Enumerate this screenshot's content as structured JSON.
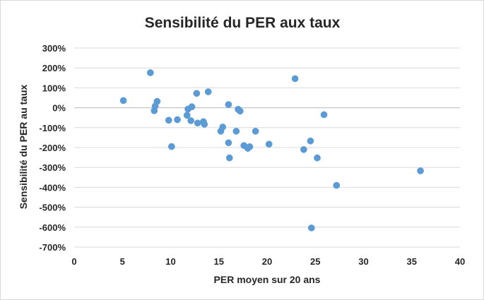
{
  "chart_data": {
    "type": "scatter",
    "title": "Sensibilité du PER aux taux",
    "xlabel": "PER moyen sur 20 ans",
    "ylabel": "Sensibilité du PER au taux",
    "xlim": [
      0,
      40
    ],
    "ylim": [
      -700,
      300
    ],
    "x_ticks": [
      0,
      5,
      10,
      15,
      20,
      25,
      30,
      35,
      40
    ],
    "x_tick_labels": [
      "0",
      "5",
      "10",
      "15",
      "20",
      "25",
      "30",
      "35",
      "40"
    ],
    "y_ticks": [
      300,
      200,
      100,
      0,
      -100,
      -200,
      -300,
      -400,
      -500,
      -600,
      -700
    ],
    "y_tick_labels": [
      "300%",
      "200%",
      "100%",
      "0%",
      "-100%",
      "-200%",
      "-300%",
      "-400%",
      "-500%",
      "-600%",
      "-700%"
    ],
    "grid": "horizontal",
    "marker_color": "#5b9bd5",
    "points": [
      {
        "x": 5.1,
        "y": 36
      },
      {
        "x": 7.9,
        "y": 176
      },
      {
        "x": 8.3,
        "y": -15
      },
      {
        "x": 8.4,
        "y": 8
      },
      {
        "x": 8.6,
        "y": 32
      },
      {
        "x": 9.8,
        "y": -63
      },
      {
        "x": 10.1,
        "y": -195
      },
      {
        "x": 10.7,
        "y": -60
      },
      {
        "x": 11.7,
        "y": -38
      },
      {
        "x": 11.8,
        "y": -7
      },
      {
        "x": 12.1,
        "y": -65
      },
      {
        "x": 12.2,
        "y": 5
      },
      {
        "x": 12.7,
        "y": 72
      },
      {
        "x": 12.8,
        "y": -77
      },
      {
        "x": 13.4,
        "y": -70
      },
      {
        "x": 13.5,
        "y": -83
      },
      {
        "x": 13.9,
        "y": 80
      },
      {
        "x": 15.2,
        "y": -118
      },
      {
        "x": 15.4,
        "y": -97
      },
      {
        "x": 16.0,
        "y": 16
      },
      {
        "x": 16.0,
        "y": -176
      },
      {
        "x": 16.1,
        "y": -252
      },
      {
        "x": 16.8,
        "y": -118
      },
      {
        "x": 17.0,
        "y": -8
      },
      {
        "x": 17.2,
        "y": -17
      },
      {
        "x": 17.6,
        "y": -190
      },
      {
        "x": 18.0,
        "y": -204
      },
      {
        "x": 18.2,
        "y": -196
      },
      {
        "x": 18.8,
        "y": -118
      },
      {
        "x": 20.2,
        "y": -183
      },
      {
        "x": 22.9,
        "y": 146
      },
      {
        "x": 23.8,
        "y": -210
      },
      {
        "x": 24.5,
        "y": -167
      },
      {
        "x": 24.6,
        "y": -604
      },
      {
        "x": 25.2,
        "y": -252
      },
      {
        "x": 25.9,
        "y": -35
      },
      {
        "x": 27.2,
        "y": -390
      },
      {
        "x": 35.9,
        "y": -317
      }
    ]
  }
}
